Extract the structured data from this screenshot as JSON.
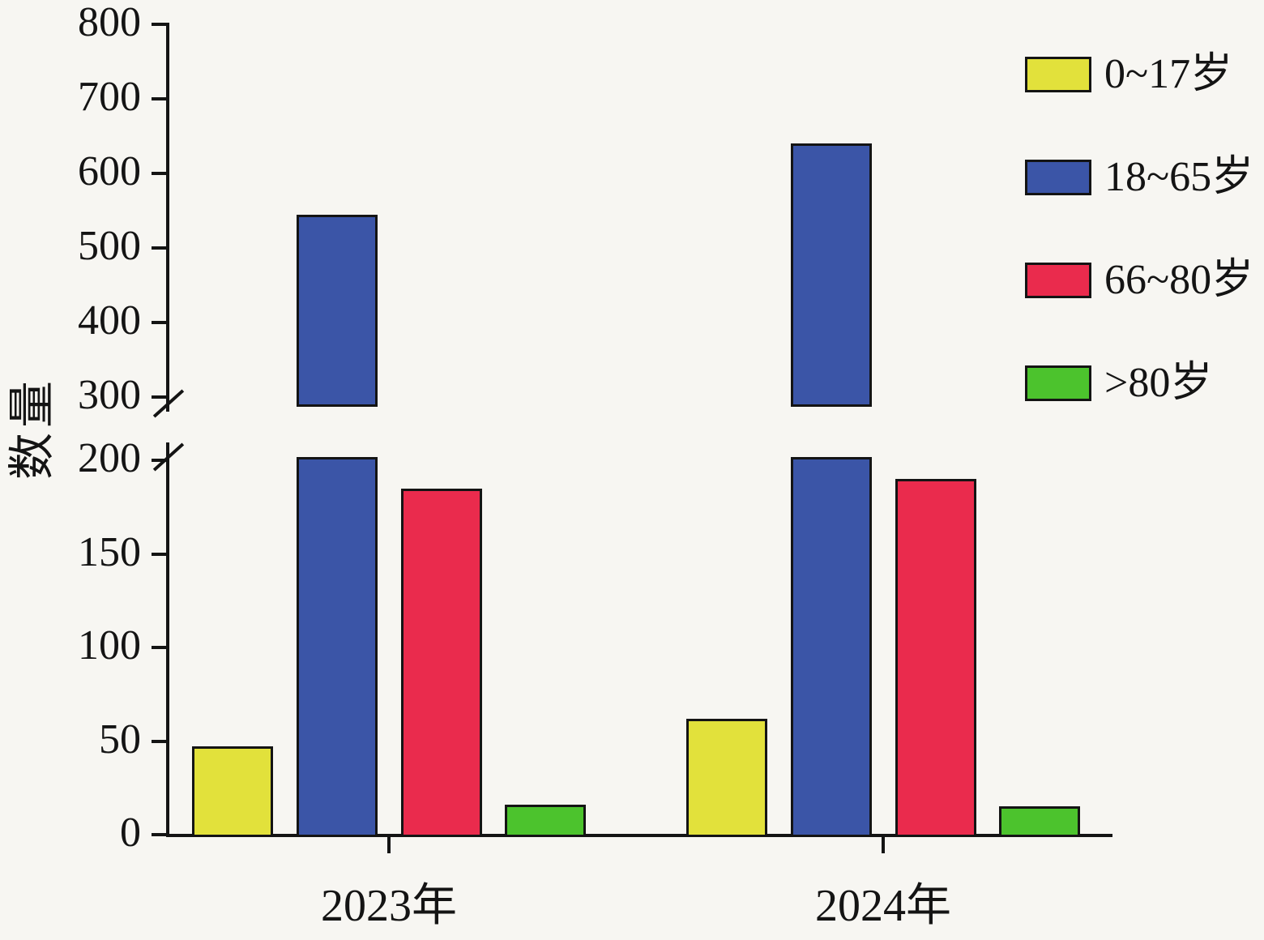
{
  "chart_data": {
    "type": "bar",
    "title": "",
    "ylabel": "数量",
    "xlabel": "",
    "categories": [
      "2023年",
      "2024年"
    ],
    "series": [
      {
        "name": "0~17岁",
        "color": "#e2e13b",
        "values": [
          47,
          62
        ]
      },
      {
        "name": "18~65岁",
        "color": "#3b55a7",
        "values": [
          545,
          640
        ]
      },
      {
        "name": "66~80岁",
        "color": "#ea2b4d",
        "values": [
          185,
          190
        ]
      },
      {
        "name": ">80岁",
        "color": "#4cc32d",
        "values": [
          16,
          15
        ]
      }
    ],
    "axis_break": {
      "lower_range": [
        0,
        200
      ],
      "upper_range": [
        300,
        800
      ]
    },
    "yticks_lower": [
      0,
      50,
      100,
      150,
      200
    ],
    "yticks_upper": [
      300,
      400,
      500,
      600,
      700,
      800
    ],
    "legend_position": "top-right",
    "grid": false,
    "background": "#f7f6f2",
    "axis_color": "#141414"
  }
}
